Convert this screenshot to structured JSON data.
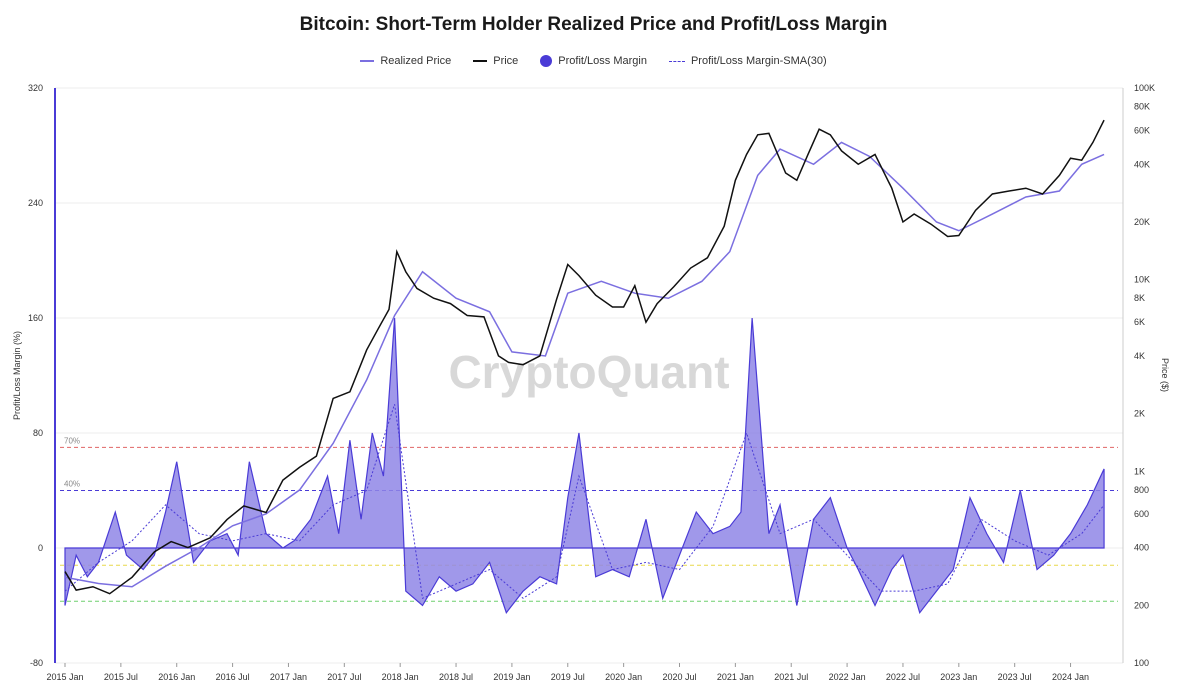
{
  "chart_data": {
    "type": "line",
    "title": "Bitcoin: Short-Term Holder Realized Price and Profit/Loss Margin",
    "watermark": "CryptoQuant",
    "legend": [
      {
        "label": "Realized Price",
        "style": "line",
        "color": "#7b6fe0"
      },
      {
        "label": "Price",
        "style": "line",
        "color": "#111111"
      },
      {
        "label": "Profit/Loss Margin",
        "style": "area",
        "color": "#4a3bd6"
      },
      {
        "label": "Profit/Loss Margin-SMA(30)",
        "style": "dashed",
        "color": "#4a3bd6"
      }
    ],
    "y_left": {
      "label": "Profit/Loss Margin (%)",
      "range": [
        -80,
        320
      ],
      "ticks": [
        "320",
        "240",
        "160",
        "80",
        "0",
        "-80"
      ]
    },
    "y_right": {
      "label": "Price ($)",
      "scale": "log",
      "range": [
        100,
        100000
      ],
      "ticks": [
        "100K",
        "80K",
        "60K",
        "40K",
        "20K",
        "10K",
        "8K",
        "6K",
        "4K",
        "2K",
        "1K",
        "800",
        "600",
        "400",
        "200",
        "100"
      ]
    },
    "x_ticks": [
      "2015 Jan",
      "2015 Jul",
      "2016 Jan",
      "2016 Jul",
      "2017 Jan",
      "2017 Jul",
      "2018 Jan",
      "2018 Jul",
      "2019 Jan",
      "2019 Jul",
      "2020 Jan",
      "2020 Jul",
      "2021 Jan",
      "2021 Jul",
      "2022 Jan",
      "2022 Jul",
      "2023 Jan",
      "2023 Jul",
      "2024 Jan"
    ],
    "reference_lines": [
      {
        "label": "70%",
        "value": 70,
        "color": "#e06666"
      },
      {
        "label": "40%",
        "value": 40,
        "color": "#4a3bd6"
      },
      {
        "label": "",
        "value": -12,
        "color": "#e8d84a"
      },
      {
        "label": "",
        "value": -37,
        "color": "#6fcf6f"
      }
    ],
    "series": [
      {
        "name": "Price",
        "x": [
          2015.0,
          2015.1,
          2015.25,
          2015.4,
          2015.6,
          2015.8,
          2015.95,
          2016.1,
          2016.3,
          2016.45,
          2016.6,
          2016.8,
          2016.95,
          2017.1,
          2017.25,
          2017.4,
          2017.55,
          2017.7,
          2017.8,
          2017.9,
          2017.97,
          2018.05,
          2018.15,
          2018.3,
          2018.45,
          2018.6,
          2018.75,
          2018.88,
          2018.97,
          2019.1,
          2019.25,
          2019.4,
          2019.5,
          2019.6,
          2019.75,
          2019.9,
          2020.0,
          2020.1,
          2020.2,
          2020.3,
          2020.45,
          2020.6,
          2020.75,
          2020.9,
          2021.0,
          2021.1,
          2021.2,
          2021.3,
          2021.45,
          2021.55,
          2021.65,
          2021.75,
          2021.85,
          2021.95,
          2022.1,
          2022.25,
          2022.4,
          2022.5,
          2022.6,
          2022.75,
          2022.9,
          2023.0,
          2023.15,
          2023.3,
          2023.45,
          2023.6,
          2023.75,
          2023.9,
          2024.0,
          2024.1,
          2024.2,
          2024.3
        ],
        "values": [
          300,
          240,
          250,
          230,
          280,
          380,
          430,
          400,
          450,
          560,
          660,
          610,
          900,
          1050,
          1200,
          2400,
          2600,
          4300,
          5500,
          7000,
          14000,
          11000,
          9000,
          8000,
          7500,
          6500,
          6400,
          4000,
          3700,
          3600,
          4000,
          7900,
          12000,
          10500,
          8300,
          7200,
          7200,
          9300,
          6000,
          7500,
          9200,
          11500,
          13000,
          19000,
          33000,
          45000,
          57000,
          58000,
          36000,
          33000,
          45000,
          61000,
          57000,
          47000,
          40000,
          45000,
          30000,
          20000,
          22000,
          19500,
          16800,
          17000,
          23000,
          28000,
          29000,
          30000,
          28000,
          35000,
          43000,
          42000,
          52000,
          68000
        ]
      },
      {
        "name": "Realized Price",
        "x": [
          2015.0,
          2015.3,
          2015.6,
          2015.9,
          2016.2,
          2016.5,
          2016.8,
          2017.1,
          2017.4,
          2017.7,
          2017.95,
          2018.2,
          2018.5,
          2018.8,
          2019.0,
          2019.3,
          2019.5,
          2019.8,
          2020.1,
          2020.4,
          2020.7,
          2020.95,
          2021.2,
          2021.4,
          2021.7,
          2021.95,
          2022.2,
          2022.5,
          2022.8,
          2023.0,
          2023.3,
          2023.6,
          2023.9,
          2024.1,
          2024.3
        ],
        "values": [
          280,
          260,
          250,
          320,
          400,
          520,
          600,
          800,
          1400,
          3000,
          6500,
          11000,
          8000,
          6800,
          4200,
          4000,
          8500,
          9800,
          8500,
          8000,
          9800,
          14000,
          35000,
          48000,
          40000,
          52000,
          44000,
          30000,
          20000,
          18000,
          22000,
          27000,
          29000,
          40000,
          45000
        ]
      },
      {
        "name": "Profit/Loss Margin",
        "x": [
          2015.0,
          2015.1,
          2015.2,
          2015.3,
          2015.45,
          2015.55,
          2015.7,
          2015.8,
          2015.9,
          2016.0,
          2016.15,
          2016.3,
          2016.45,
          2016.55,
          2016.65,
          2016.8,
          2016.95,
          2017.05,
          2017.2,
          2017.35,
          2017.45,
          2017.55,
          2017.65,
          2017.75,
          2017.85,
          2017.95,
          2018.05,
          2018.2,
          2018.35,
          2018.5,
          2018.65,
          2018.8,
          2018.95,
          2019.1,
          2019.25,
          2019.4,
          2019.5,
          2019.6,
          2019.75,
          2019.9,
          2020.05,
          2020.2,
          2020.35,
          2020.5,
          2020.65,
          2020.8,
          2020.95,
          2021.05,
          2021.15,
          2021.3,
          2021.4,
          2021.55,
          2021.7,
          2021.85,
          2022.0,
          2022.1,
          2022.25,
          2022.4,
          2022.5,
          2022.65,
          2022.8,
          2022.95,
          2023.1,
          2023.25,
          2023.4,
          2023.55,
          2023.7,
          2023.85,
          2024.0,
          2024.15,
          2024.3
        ],
        "values": [
          -40,
          -5,
          -20,
          -10,
          25,
          -5,
          -15,
          -5,
          25,
          60,
          -10,
          5,
          10,
          -5,
          60,
          10,
          0,
          5,
          20,
          50,
          10,
          75,
          20,
          80,
          50,
          160,
          -30,
          -40,
          -20,
          -30,
          -25,
          -10,
          -45,
          -30,
          -20,
          -25,
          35,
          80,
          -20,
          -15,
          -20,
          20,
          -35,
          -5,
          25,
          10,
          15,
          25,
          160,
          10,
          30,
          -40,
          20,
          35,
          0,
          -15,
          -40,
          -15,
          -5,
          -45,
          -30,
          -15,
          35,
          10,
          -10,
          40,
          -15,
          -5,
          10,
          30,
          55
        ]
      },
      {
        "name": "Profit/Loss Margin-SMA(30)",
        "x": [
          2015.0,
          2015.3,
          2015.6,
          2015.9,
          2016.2,
          2016.5,
          2016.8,
          2017.1,
          2017.4,
          2017.7,
          2017.95,
          2018.2,
          2018.5,
          2018.8,
          2019.1,
          2019.4,
          2019.6,
          2019.9,
          2020.2,
          2020.5,
          2020.8,
          2021.1,
          2021.4,
          2021.7,
          2022.0,
          2022.3,
          2022.6,
          2022.9,
          2023.2,
          2023.5,
          2023.8,
          2024.1,
          2024.3
        ],
        "values": [
          -30,
          -10,
          5,
          30,
          10,
          5,
          10,
          5,
          30,
          40,
          100,
          -35,
          -25,
          -15,
          -35,
          -20,
          50,
          -15,
          -10,
          -15,
          15,
          80,
          10,
          20,
          -5,
          -30,
          -30,
          -25,
          20,
          5,
          -5,
          10,
          30
        ]
      }
    ]
  }
}
